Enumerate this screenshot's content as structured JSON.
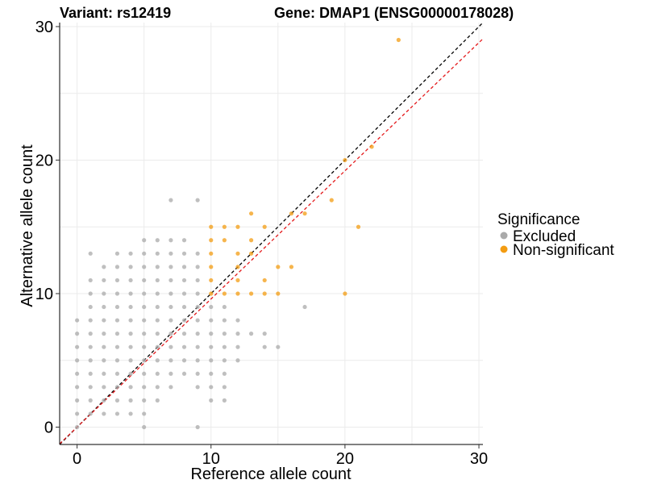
{
  "chart_data": {
    "type": "scatter",
    "title_left": "Variant: rs12419",
    "title_right": "Gene: DMAP1 (ENSG00000178028)",
    "xlabel": "Reference allele count",
    "ylabel": "Alternative allele count",
    "xlim": [
      -1.3,
      30.3
    ],
    "ylim": [
      -1.3,
      30.3
    ],
    "xticks": [
      0,
      10,
      20,
      30
    ],
    "yticks": [
      0,
      10,
      20,
      30
    ],
    "grid": true,
    "legend": {
      "title": "Significance",
      "placement": "right",
      "entries": [
        "Excluded",
        "Non-significant"
      ]
    },
    "colors": {
      "Excluded": "#aaaaaa",
      "Non-significant": "#f39c12",
      "identity_line": "#000000",
      "fit_line": "#e41a1c",
      "grid": "#ebebeb"
    },
    "reference_lines": [
      {
        "kind": "identity",
        "slope": 1,
        "intercept": 0,
        "style": "dashed",
        "color": "#000000"
      },
      {
        "kind": "fit",
        "slope": 0.96,
        "intercept": 0,
        "style": "dashed",
        "color": "#e41a1c"
      }
    ],
    "series": [
      {
        "name": "Excluded",
        "points": [
          [
            0,
            0
          ],
          [
            0,
            1
          ],
          [
            0,
            2
          ],
          [
            0,
            3
          ],
          [
            0,
            4
          ],
          [
            0,
            5
          ],
          [
            0,
            6
          ],
          [
            0,
            7
          ],
          [
            0,
            8
          ],
          [
            1,
            1
          ],
          [
            1,
            2
          ],
          [
            1,
            3
          ],
          [
            1,
            4
          ],
          [
            1,
            5
          ],
          [
            1,
            6
          ],
          [
            1,
            7
          ],
          [
            1,
            8
          ],
          [
            1,
            9
          ],
          [
            1,
            10
          ],
          [
            1,
            11
          ],
          [
            1,
            13
          ],
          [
            2,
            1
          ],
          [
            2,
            2
          ],
          [
            2,
            3
          ],
          [
            2,
            4
          ],
          [
            2,
            5
          ],
          [
            2,
            6
          ],
          [
            2,
            7
          ],
          [
            2,
            8
          ],
          [
            2,
            9
          ],
          [
            2,
            10
          ],
          [
            2,
            11
          ],
          [
            2,
            12
          ],
          [
            3,
            1
          ],
          [
            3,
            2
          ],
          [
            3,
            3
          ],
          [
            3,
            4
          ],
          [
            3,
            5
          ],
          [
            3,
            6
          ],
          [
            3,
            7
          ],
          [
            3,
            8
          ],
          [
            3,
            9
          ],
          [
            3,
            10
          ],
          [
            3,
            11
          ],
          [
            3,
            12
          ],
          [
            3,
            13
          ],
          [
            4,
            1
          ],
          [
            4,
            2
          ],
          [
            4,
            3
          ],
          [
            4,
            4
          ],
          [
            4,
            5
          ],
          [
            4,
            6
          ],
          [
            4,
            7
          ],
          [
            4,
            8
          ],
          [
            4,
            9
          ],
          [
            4,
            10
          ],
          [
            4,
            11
          ],
          [
            4,
            12
          ],
          [
            4,
            13
          ],
          [
            5,
            0
          ],
          [
            5,
            1
          ],
          [
            5,
            2
          ],
          [
            5,
            3
          ],
          [
            5,
            4
          ],
          [
            5,
            5
          ],
          [
            5,
            6
          ],
          [
            5,
            7
          ],
          [
            5,
            8
          ],
          [
            5,
            9
          ],
          [
            5,
            10
          ],
          [
            5,
            11
          ],
          [
            5,
            12
          ],
          [
            5,
            13
          ],
          [
            5,
            14
          ],
          [
            6,
            2
          ],
          [
            6,
            3
          ],
          [
            6,
            4
          ],
          [
            6,
            5
          ],
          [
            6,
            6
          ],
          [
            6,
            7
          ],
          [
            6,
            8
          ],
          [
            6,
            9
          ],
          [
            6,
            10
          ],
          [
            6,
            11
          ],
          [
            6,
            12
          ],
          [
            6,
            13
          ],
          [
            6,
            14
          ],
          [
            7,
            3
          ],
          [
            7,
            4
          ],
          [
            7,
            5
          ],
          [
            7,
            6
          ],
          [
            7,
            7
          ],
          [
            7,
            8
          ],
          [
            7,
            9
          ],
          [
            7,
            10
          ],
          [
            7,
            11
          ],
          [
            7,
            12
          ],
          [
            7,
            13
          ],
          [
            7,
            14
          ],
          [
            7,
            17
          ],
          [
            8,
            4
          ],
          [
            8,
            5
          ],
          [
            8,
            6
          ],
          [
            8,
            7
          ],
          [
            8,
            8
          ],
          [
            8,
            9
          ],
          [
            8,
            10
          ],
          [
            8,
            11
          ],
          [
            8,
            12
          ],
          [
            8,
            13
          ],
          [
            8,
            14
          ],
          [
            9,
            0
          ],
          [
            9,
            3
          ],
          [
            9,
            4
          ],
          [
            9,
            5
          ],
          [
            9,
            6
          ],
          [
            9,
            7
          ],
          [
            9,
            8
          ],
          [
            9,
            9
          ],
          [
            9,
            10
          ],
          [
            9,
            11
          ],
          [
            9,
            12
          ],
          [
            9,
            13
          ],
          [
            9,
            17
          ],
          [
            10,
            2
          ],
          [
            10,
            3
          ],
          [
            10,
            4
          ],
          [
            10,
            5
          ],
          [
            10,
            6
          ],
          [
            10,
            7
          ],
          [
            10,
            8
          ],
          [
            10,
            9
          ],
          [
            11,
            2
          ],
          [
            11,
            3
          ],
          [
            11,
            4
          ],
          [
            11,
            5
          ],
          [
            11,
            6
          ],
          [
            11,
            7
          ],
          [
            11,
            8
          ],
          [
            11,
            9
          ],
          [
            12,
            5
          ],
          [
            12,
            6
          ],
          [
            12,
            7
          ],
          [
            12,
            8
          ],
          [
            13,
            7
          ],
          [
            14,
            7
          ],
          [
            14,
            6
          ],
          [
            15,
            6
          ],
          [
            17,
            9
          ]
        ]
      },
      {
        "name": "Non-significant",
        "points": [
          [
            10,
            15
          ],
          [
            10,
            14
          ],
          [
            10,
            13
          ],
          [
            10,
            12
          ],
          [
            10,
            11
          ],
          [
            10,
            10
          ],
          [
            11,
            15
          ],
          [
            11,
            14
          ],
          [
            11,
            10
          ],
          [
            12,
            15
          ],
          [
            12,
            13
          ],
          [
            12,
            12
          ],
          [
            12,
            11
          ],
          [
            12,
            10
          ],
          [
            13,
            16
          ],
          [
            13,
            14
          ],
          [
            13,
            13
          ],
          [
            13,
            10
          ],
          [
            14,
            15
          ],
          [
            14,
            11
          ],
          [
            14,
            10
          ],
          [
            15,
            12
          ],
          [
            15,
            10
          ],
          [
            16,
            16
          ],
          [
            16,
            12
          ],
          [
            17,
            16
          ],
          [
            19,
            17
          ],
          [
            20,
            20
          ],
          [
            20,
            10
          ],
          [
            21,
            15
          ],
          [
            22,
            21
          ],
          [
            24,
            29
          ]
        ]
      }
    ]
  }
}
